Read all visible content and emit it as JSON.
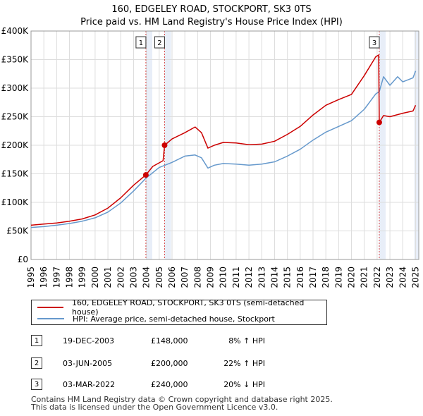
{
  "title": "160, EDGELEY ROAD, STOCKPORT, SK3 0TS",
  "subtitle": "Price paid vs. HM Land Registry's House Price Index (HPI)",
  "colors": {
    "red": "#cc0000",
    "blue": "#6699cc",
    "grid": "#dddddd",
    "shade": "#e8eef8",
    "vline": "#cc0000"
  },
  "chart_data": {
    "type": "line",
    "title": "160, EDGELEY ROAD, STOCKPORT, SK3 0TS",
    "subtitle": "Price paid vs. HM Land Registry's House Price Index (HPI)",
    "xlim": [
      1995,
      2025.25
    ],
    "ylim": [
      0,
      400000
    ],
    "x_ticks": [
      1995,
      1996,
      1997,
      1998,
      1999,
      2000,
      2001,
      2002,
      2003,
      2004,
      2005,
      2006,
      2007,
      2008,
      2009,
      2010,
      2011,
      2012,
      2013,
      2014,
      2015,
      2016,
      2017,
      2018,
      2019,
      2020,
      2021,
      2022,
      2023,
      2024,
      2025
    ],
    "y_ticks": [
      {
        "value": 0,
        "label": "£0"
      },
      {
        "value": 50000,
        "label": "£50K"
      },
      {
        "value": 100000,
        "label": "£100K"
      },
      {
        "value": 150000,
        "label": "£150K"
      },
      {
        "value": 200000,
        "label": "£200K"
      },
      {
        "value": 250000,
        "label": "£250K"
      },
      {
        "value": 300000,
        "label": "£300K"
      },
      {
        "value": 350000,
        "label": "£350K"
      },
      {
        "value": 400000,
        "label": "£400K"
      }
    ],
    "grid": true,
    "series": [
      {
        "name": "160, EDGELEY ROAD, STOCKPORT, SK3 0TS (semi-detached house)",
        "color": "#cc0000",
        "x": [
          1995,
          1996,
          1997,
          1998,
          1999,
          2000,
          2001,
          2002,
          2003,
          2003.96,
          2004.5,
          2005.3,
          2005.42,
          2006,
          2007,
          2007.8,
          2008.3,
          2008.8,
          2009.3,
          2010,
          2011,
          2012,
          2013,
          2014,
          2015,
          2016,
          2017,
          2018,
          2019,
          2020,
          2021,
          2021.9,
          2022.12,
          2022.17,
          2022.5,
          2023,
          2024,
          2024.8,
          2025
        ],
        "y": [
          60000,
          62000,
          64000,
          67000,
          71000,
          78000,
          90000,
          108000,
          130000,
          148000,
          163000,
          173000,
          200000,
          211000,
          222000,
          232000,
          222000,
          195000,
          200000,
          205000,
          204000,
          201000,
          202000,
          207000,
          219000,
          233000,
          253000,
          270000,
          280000,
          289000,
          322000,
          355000,
          358000,
          240000,
          252000,
          250000,
          256000,
          260000,
          270000
        ]
      },
      {
        "name": "HPI: Average price, semi-detached house, Stockport",
        "color": "#6699cc",
        "x": [
          1995,
          1996,
          1997,
          1998,
          1999,
          2000,
          2001,
          2002,
          2003,
          2004,
          2005,
          2006,
          2007,
          2007.8,
          2008.3,
          2008.8,
          2009.3,
          2010,
          2011,
          2012,
          2013,
          2014,
          2015,
          2016,
          2017,
          2018,
          2019,
          2020,
          2021,
          2021.9,
          2022.17,
          2022.5,
          2023,
          2023.6,
          2024,
          2024.8,
          2025
        ],
        "y": [
          56000,
          57500,
          60000,
          63000,
          67000,
          73000,
          83000,
          99000,
          120000,
          143000,
          161000,
          170000,
          181000,
          183000,
          178000,
          160000,
          165000,
          168000,
          167000,
          165000,
          167000,
          171000,
          181000,
          193000,
          209000,
          223000,
          233000,
          243000,
          263000,
          290000,
          294000,
          320000,
          305000,
          320000,
          311000,
          318000,
          330000
        ]
      }
    ],
    "sales": [
      {
        "id": "1",
        "x": 2003.96,
        "y": 148000,
        "date": "19-DEC-2003",
        "price": "£148,000",
        "hpi": "8% ↑ HPI"
      },
      {
        "id": "2",
        "x": 2005.42,
        "y": 200000,
        "date": "03-JUN-2005",
        "price": "£200,000",
        "hpi": "22% ↑ HPI"
      },
      {
        "id": "3",
        "x": 2022.17,
        "y": 240000,
        "date": "03-MAR-2022",
        "price": "£240,000",
        "hpi": "20% ↓ HPI"
      }
    ]
  },
  "legend": {
    "items": [
      {
        "label": "160, EDGELEY ROAD, STOCKPORT, SK3 0TS (semi-detached house)",
        "color": "#cc0000"
      },
      {
        "label": "HPI: Average price, semi-detached house, Stockport",
        "color": "#6699cc"
      }
    ]
  },
  "footer": {
    "line1": "Contains HM Land Registry data © Crown copyright and database right 2025.",
    "line2": "This data is licensed under the Open Government Licence v3.0."
  }
}
